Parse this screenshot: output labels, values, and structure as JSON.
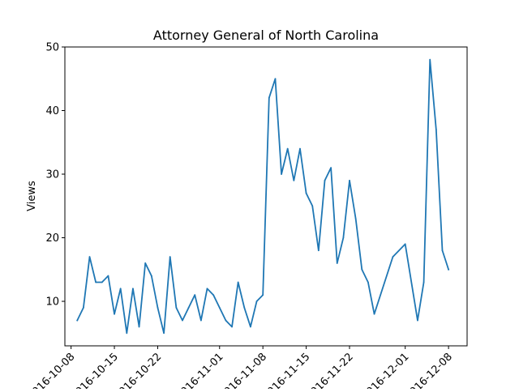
{
  "chart_data": {
    "type": "line",
    "title": "Attorney General of North Carolina",
    "xlabel": "",
    "ylabel": "Views",
    "x_type": "date",
    "xlim": [
      "2016-10-07",
      "2016-12-11"
    ],
    "ylim": [
      3,
      50
    ],
    "xticks": [
      "2016-10-08",
      "2016-10-15",
      "2016-10-22",
      "2016-11-01",
      "2016-11-08",
      "2016-11-15",
      "2016-11-22",
      "2016-12-01",
      "2016-12-08"
    ],
    "yticks": [
      10,
      20,
      30,
      40,
      50
    ],
    "grid": false,
    "legend": "none",
    "series": [
      {
        "color": "#1f77b4",
        "x": [
          "2016-10-09",
          "2016-10-10",
          "2016-10-11",
          "2016-10-12",
          "2016-10-13",
          "2016-10-14",
          "2016-10-15",
          "2016-10-16",
          "2016-10-17",
          "2016-10-18",
          "2016-10-19",
          "2016-10-20",
          "2016-10-21",
          "2016-10-22",
          "2016-10-23",
          "2016-10-24",
          "2016-10-25",
          "2016-10-26",
          "2016-10-27",
          "2016-10-28",
          "2016-10-29",
          "2016-10-30",
          "2016-10-31",
          "2016-11-01",
          "2016-11-02",
          "2016-11-03",
          "2016-11-04",
          "2016-11-05",
          "2016-11-06",
          "2016-11-07",
          "2016-11-08",
          "2016-11-09",
          "2016-11-10",
          "2016-11-11",
          "2016-11-12",
          "2016-11-13",
          "2016-11-14",
          "2016-11-15",
          "2016-11-16",
          "2016-11-17",
          "2016-11-18",
          "2016-11-19",
          "2016-11-20",
          "2016-11-21",
          "2016-11-22",
          "2016-11-23",
          "2016-11-24",
          "2016-11-25",
          "2016-11-26",
          "2016-11-29",
          "2016-12-01",
          "2016-12-03",
          "2016-12-04",
          "2016-12-05",
          "2016-12-06",
          "2016-12-07",
          "2016-12-08"
        ],
        "values": [
          7,
          9,
          17,
          13,
          13,
          14,
          8,
          12,
          5,
          12,
          6,
          16,
          14,
          9,
          5,
          17,
          9,
          7,
          9,
          11,
          7,
          12,
          11,
          9,
          7,
          6,
          13,
          9,
          6,
          10,
          11,
          42,
          45,
          30,
          34,
          29,
          34,
          27,
          25,
          18,
          29,
          31,
          16,
          20,
          29,
          23,
          15,
          13,
          8,
          17,
          19,
          7,
          13,
          48,
          37,
          18,
          15
        ]
      }
    ]
  }
}
